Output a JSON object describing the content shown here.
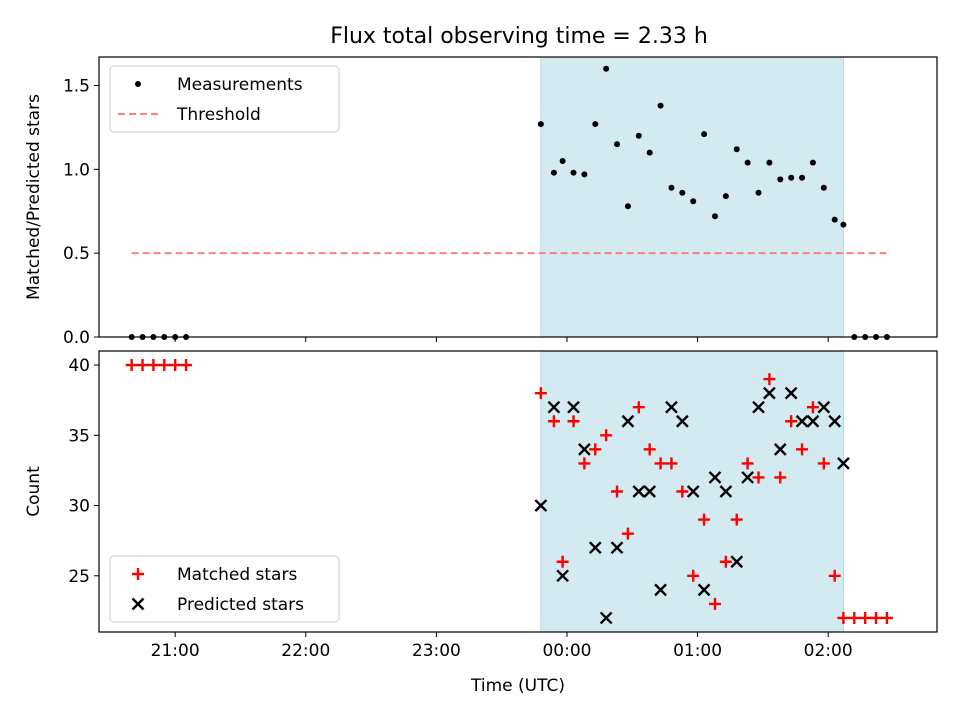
{
  "title": "Flux total observing time = 2.33 h",
  "chart_data": [
    {
      "type": "scatter",
      "ylabel": "Matched/Predicted stars",
      "xlabel": "",
      "x_time_range": [
        "20:25",
        "02:50"
      ],
      "ylim": [
        0,
        1.67
      ],
      "yticks": [
        "0.0",
        "0.5",
        "1.0",
        "1.5"
      ],
      "shaded_interval": [
        "23:48",
        "02:07"
      ],
      "shaded_color": "#d3eaf0",
      "legend": {
        "position": "top-left",
        "entries": [
          "Measurements",
          "Threshold"
        ]
      },
      "threshold": {
        "name": "Threshold",
        "y": 0.5,
        "x": [
          "20:40",
          "02:27"
        ],
        "color": "#ff7f7f",
        "style": "dashed"
      },
      "series": [
        {
          "name": "Measurements",
          "color": "#000000",
          "marker": "dot",
          "points": [
            [
              "20:40",
              0
            ],
            [
              "20:45",
              0
            ],
            [
              "20:50",
              0
            ],
            [
              "20:55",
              0
            ],
            [
              "21:00",
              0
            ],
            [
              "21:05",
              0
            ],
            [
              "23:48",
              1.27
            ],
            [
              "23:54",
              0.98
            ],
            [
              "23:58",
              1.05
            ],
            [
              "00:03",
              0.98
            ],
            [
              "00:08",
              0.97
            ],
            [
              "00:13",
              1.27
            ],
            [
              "00:18",
              1.6
            ],
            [
              "00:23",
              1.15
            ],
            [
              "00:28",
              0.78
            ],
            [
              "00:33",
              1.2
            ],
            [
              "00:38",
              1.1
            ],
            [
              "00:43",
              1.38
            ],
            [
              "00:48",
              0.89
            ],
            [
              "00:53",
              0.86
            ],
            [
              "00:58",
              0.81
            ],
            [
              "01:03",
              1.21
            ],
            [
              "01:08",
              0.72
            ],
            [
              "01:13",
              0.84
            ],
            [
              "01:18",
              1.12
            ],
            [
              "01:23",
              1.04
            ],
            [
              "01:28",
              0.86
            ],
            [
              "01:33",
              1.04
            ],
            [
              "01:38",
              0.94
            ],
            [
              "01:43",
              0.95
            ],
            [
              "01:48",
              0.95
            ],
            [
              "01:53",
              1.04
            ],
            [
              "01:58",
              0.89
            ],
            [
              "02:03",
              0.7
            ],
            [
              "02:07",
              0.67
            ],
            [
              "02:12",
              0
            ],
            [
              "02:17",
              0
            ],
            [
              "02:22",
              0
            ],
            [
              "02:27",
              0
            ]
          ]
        }
      ]
    },
    {
      "type": "scatter",
      "ylabel": "Count",
      "xlabel": "Time (UTC)",
      "x_time_range": [
        "20:25",
        "02:50"
      ],
      "ylim": [
        21,
        41
      ],
      "yticks": [
        "25",
        "30",
        "35",
        "40"
      ],
      "xticks": [
        "21:00",
        "22:00",
        "23:00",
        "00:00",
        "01:00",
        "02:00"
      ],
      "shaded_interval": [
        "23:48",
        "02:07"
      ],
      "shaded_color": "#d3eaf0",
      "legend": {
        "position": "bottom-left",
        "entries": [
          "Matched stars",
          "Predicted stars"
        ]
      },
      "series": [
        {
          "name": "Matched stars",
          "color": "#ff0000",
          "marker": "plus",
          "points": [
            [
              "20:40",
              40
            ],
            [
              "20:45",
              40
            ],
            [
              "20:50",
              40
            ],
            [
              "20:55",
              40
            ],
            [
              "21:00",
              40
            ],
            [
              "21:05",
              40
            ],
            [
              "23:48",
              38
            ],
            [
              "23:54",
              36
            ],
            [
              "23:58",
              26
            ],
            [
              "00:03",
              36
            ],
            [
              "00:08",
              33
            ],
            [
              "00:13",
              34
            ],
            [
              "00:18",
              35
            ],
            [
              "00:23",
              31
            ],
            [
              "00:28",
              28
            ],
            [
              "00:33",
              37
            ],
            [
              "00:38",
              34
            ],
            [
              "00:43",
              33
            ],
            [
              "00:48",
              33
            ],
            [
              "00:53",
              31
            ],
            [
              "00:58",
              25
            ],
            [
              "01:03",
              29
            ],
            [
              "01:08",
              23
            ],
            [
              "01:13",
              26
            ],
            [
              "01:18",
              29
            ],
            [
              "01:23",
              33
            ],
            [
              "01:28",
              32
            ],
            [
              "01:33",
              39
            ],
            [
              "01:38",
              32
            ],
            [
              "01:43",
              36
            ],
            [
              "01:48",
              34
            ],
            [
              "01:53",
              37
            ],
            [
              "01:58",
              33
            ],
            [
              "02:03",
              25
            ],
            [
              "02:07",
              22
            ],
            [
              "02:12",
              22
            ],
            [
              "02:17",
              22
            ],
            [
              "02:22",
              22
            ],
            [
              "02:27",
              22
            ]
          ]
        },
        {
          "name": "Predicted stars",
          "color": "#000000",
          "marker": "x",
          "points": [
            [
              "23:48",
              30
            ],
            [
              "23:54",
              37
            ],
            [
              "23:58",
              25
            ],
            [
              "00:03",
              37
            ],
            [
              "00:08",
              34
            ],
            [
              "00:13",
              27
            ],
            [
              "00:18",
              22
            ],
            [
              "00:23",
              27
            ],
            [
              "00:28",
              36
            ],
            [
              "00:33",
              31
            ],
            [
              "00:38",
              31
            ],
            [
              "00:43",
              24
            ],
            [
              "00:48",
              37
            ],
            [
              "00:53",
              36
            ],
            [
              "00:58",
              31
            ],
            [
              "01:03",
              24
            ],
            [
              "01:08",
              32
            ],
            [
              "01:13",
              31
            ],
            [
              "01:18",
              26
            ],
            [
              "01:23",
              32
            ],
            [
              "01:28",
              37
            ],
            [
              "01:33",
              38
            ],
            [
              "01:38",
              34
            ],
            [
              "01:43",
              38
            ],
            [
              "01:48",
              36
            ],
            [
              "01:53",
              36
            ],
            [
              "01:58",
              37
            ],
            [
              "02:03",
              36
            ],
            [
              "02:07",
              33
            ]
          ]
        }
      ]
    }
  ]
}
